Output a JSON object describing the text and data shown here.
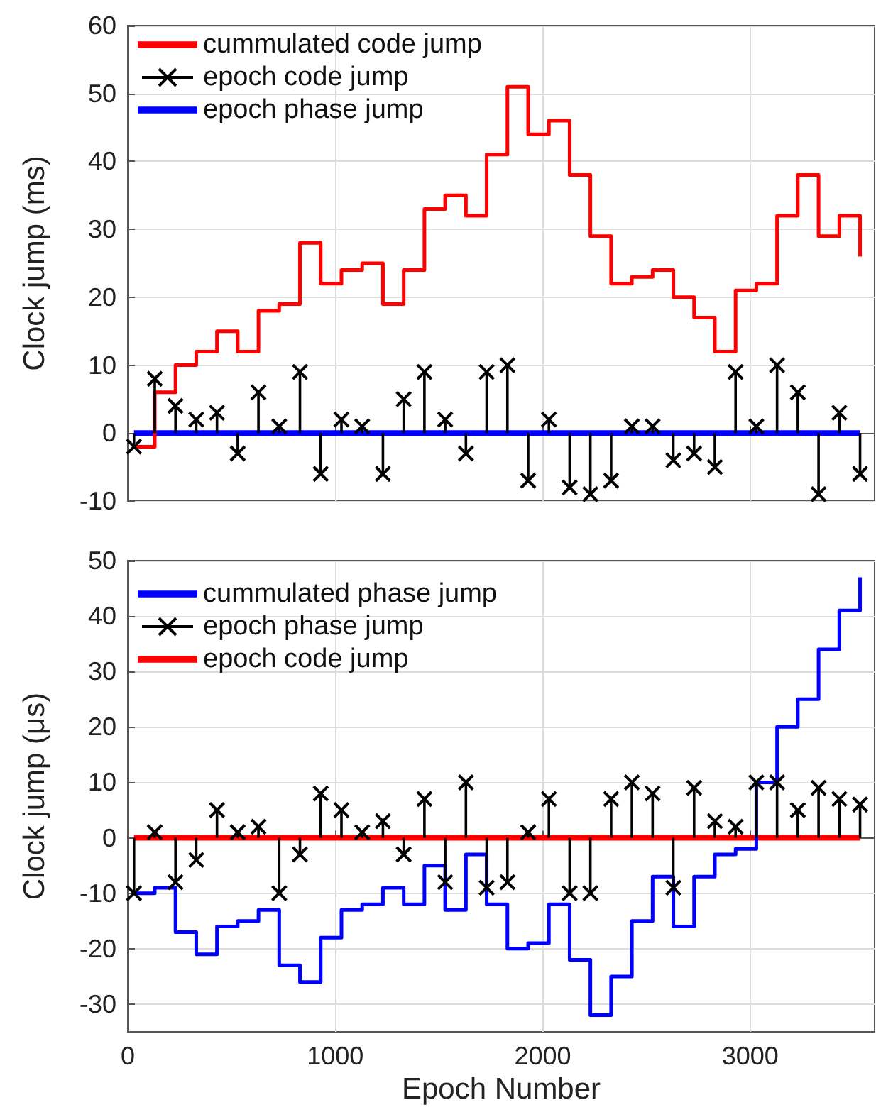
{
  "chart_data": [
    {
      "type": "step",
      "ylabel": "Clock jump (ms)",
      "xlim": [
        0,
        3600
      ],
      "xticks": [
        0,
        1000,
        2000,
        3000
      ],
      "ylim": [
        -10,
        60
      ],
      "yticks": [
        -10,
        0,
        10,
        20,
        30,
        40,
        50,
        60
      ],
      "tick_labels": "y",
      "grid": true,
      "legend": "top left",
      "x": [
        30,
        130,
        230,
        330,
        430,
        530,
        630,
        730,
        830,
        930,
        1030,
        1130,
        1230,
        1330,
        1430,
        1530,
        1630,
        1730,
        1830,
        1930,
        2030,
        2130,
        2230,
        2330,
        2430,
        2530,
        2630,
        2730,
        2830,
        2930,
        3030,
        3130,
        3230,
        3330,
        3430,
        3530
      ],
      "series": [
        {
          "name": "cummulated code jump",
          "type": "step",
          "color": "#ff0000",
          "marker": "none",
          "values": [
            -2,
            6,
            10,
            12,
            15,
            12,
            18,
            19,
            28,
            22,
            24,
            25,
            19,
            24,
            33,
            35,
            32,
            41,
            51,
            44,
            46,
            38,
            29,
            22,
            23,
            24,
            20,
            17,
            12,
            21,
            22,
            32,
            38,
            29,
            32,
            26
          ]
        },
        {
          "name": "epoch code jump",
          "type": "lollipop",
          "color": "#000000",
          "marker": "cross",
          "values": [
            -2,
            8,
            4,
            2,
            3,
            -3,
            6,
            1,
            9,
            -6,
            2,
            1,
            -6,
            5,
            9,
            2,
            -3,
            9,
            10,
            -7,
            2,
            -8,
            -9,
            -7,
            1,
            1,
            -4,
            -3,
            -5,
            9,
            1,
            10,
            6,
            -9,
            3,
            -6
          ]
        },
        {
          "name": "epoch phase jump",
          "type": "line",
          "color": "#0000ff",
          "marker": "none",
          "values": [
            0,
            0,
            0,
            0,
            0,
            0,
            0,
            0,
            0,
            0,
            0,
            0,
            0,
            0,
            0,
            0,
            0,
            0,
            0,
            0,
            0,
            0,
            0,
            0,
            0,
            0,
            0,
            0,
            0,
            0,
            0,
            0,
            0,
            0,
            0,
            0
          ]
        }
      ]
    },
    {
      "type": "step",
      "xlabel": "Epoch Number",
      "ylabel": "Clock jump (μs)",
      "xlim": [
        0,
        3600
      ],
      "xticks": [
        0,
        1000,
        2000,
        3000
      ],
      "ylim": [
        -35,
        50
      ],
      "yticks": [
        -30,
        -20,
        -10,
        0,
        10,
        20,
        30,
        40,
        50
      ],
      "grid": true,
      "legend": "top left",
      "x": [
        30,
        130,
        230,
        330,
        430,
        530,
        630,
        730,
        830,
        930,
        1030,
        1130,
        1230,
        1330,
        1430,
        1530,
        1630,
        1730,
        1830,
        1930,
        2030,
        2130,
        2230,
        2330,
        2430,
        2530,
        2630,
        2730,
        2830,
        2930,
        3030,
        3130,
        3230,
        3330,
        3430,
        3530
      ],
      "series": [
        {
          "name": "cummulated phase jump",
          "type": "step",
          "color": "#0000ff",
          "marker": "none",
          "values": [
            -10,
            -9,
            -17,
            -21,
            -16,
            -15,
            -13,
            -23,
            -26,
            -18,
            -13,
            -12,
            -9,
            -12,
            -5,
            -13,
            -3,
            -12,
            -20,
            -19,
            -12,
            -22,
            -32,
            -25,
            -15,
            -7,
            -16,
            -7,
            -3,
            -2,
            10,
            20,
            25,
            34,
            41,
            47
          ]
        },
        {
          "name": "epoch phase jump",
          "type": "lollipop",
          "color": "#000000",
          "marker": "cross",
          "values": [
            -10,
            1,
            -8,
            -4,
            5,
            1,
            2,
            -10,
            -3,
            8,
            5,
            1,
            3,
            -3,
            7,
            -8,
            10,
            -9,
            -8,
            1,
            7,
            -10,
            -10,
            7,
            10,
            8,
            -9,
            9,
            3,
            2,
            10,
            10,
            5,
            9,
            7,
            6
          ]
        },
        {
          "name": "epoch code jump",
          "type": "line",
          "color": "#ff0000",
          "marker": "none",
          "values": [
            0,
            0,
            0,
            0,
            0,
            0,
            0,
            0,
            0,
            0,
            0,
            0,
            0,
            0,
            0,
            0,
            0,
            0,
            0,
            0,
            0,
            0,
            0,
            0,
            0,
            0,
            0,
            0,
            0,
            0,
            0,
            0,
            0,
            0,
            0,
            0
          ]
        }
      ]
    }
  ]
}
